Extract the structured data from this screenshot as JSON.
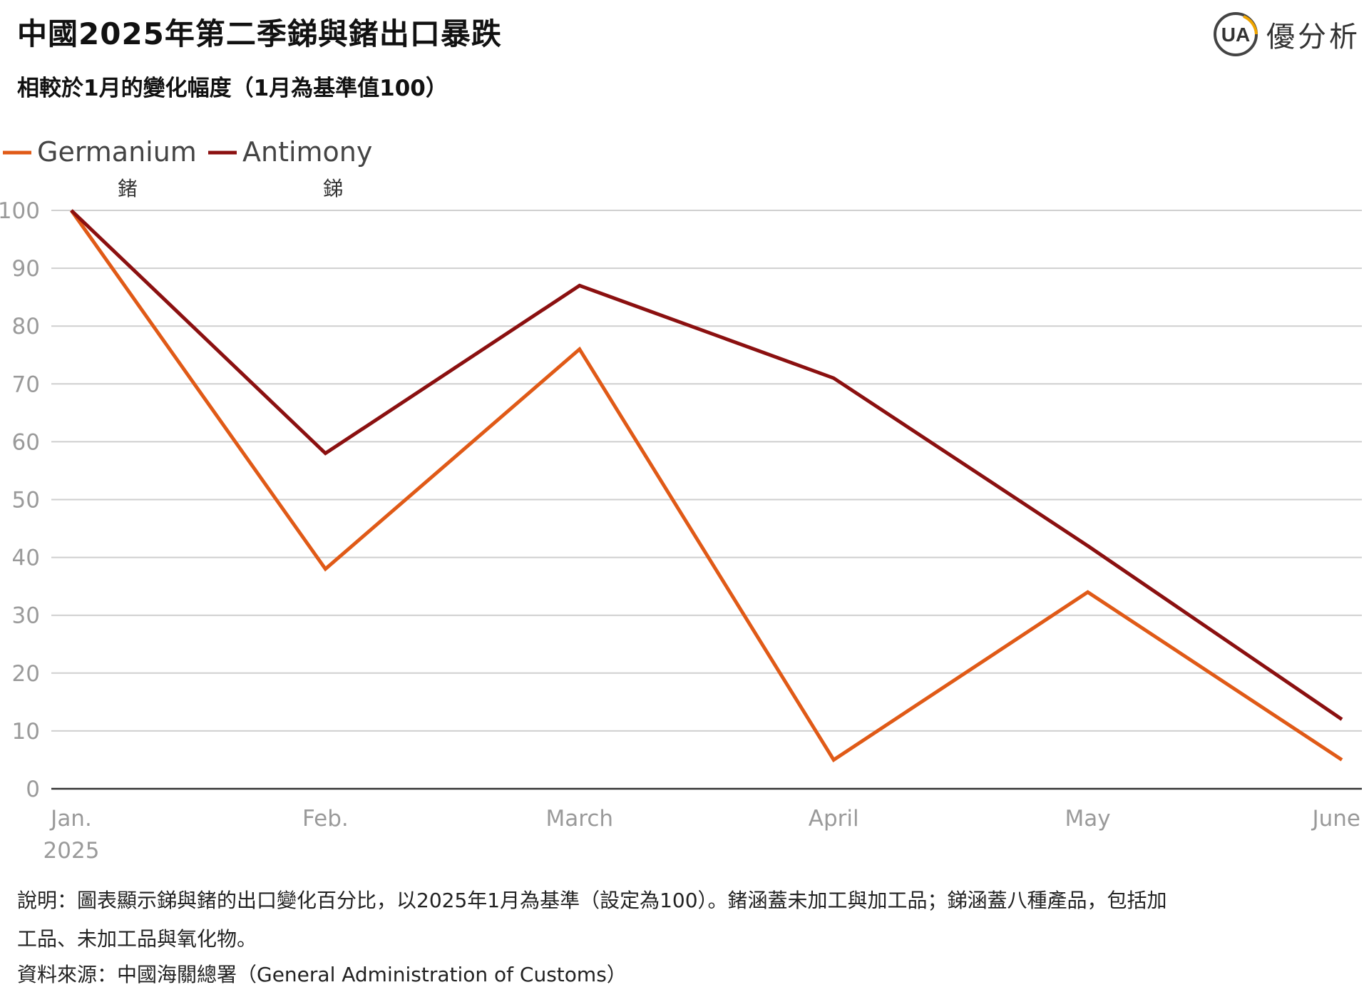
{
  "header": {
    "title": "中國2025年第二季銻與鍺出口暴跌",
    "subtitle": "相較於1月的變化幅度（1月為基準值100）"
  },
  "logo": {
    "mark_text": "UA",
    "name": "優分析",
    "ring_color": "#444444",
    "accent_color": "#f0a500"
  },
  "chart_data": {
    "type": "line",
    "categories": [
      "Jan.",
      "Feb.",
      "March",
      "April",
      "May",
      "June"
    ],
    "category_sublabels": [
      "2025",
      "",
      "",
      "",
      "",
      ""
    ],
    "series": [
      {
        "name": "Germanium",
        "name_cn": "鍺",
        "color": "#e05a17",
        "values": [
          100,
          38,
          76,
          5,
          34,
          5
        ]
      },
      {
        "name": "Antimony",
        "name_cn": "銻",
        "color": "#8b1010",
        "values": [
          100,
          58,
          87,
          71,
          42,
          12
        ]
      }
    ],
    "ylim": [
      0,
      100
    ],
    "yticks": [
      0,
      10,
      20,
      30,
      40,
      50,
      60,
      70,
      80,
      90,
      100
    ],
    "grid": true,
    "legend": "top-left"
  },
  "footer": {
    "note_line1": "說明：圖表顯示銻與鍺的出口變化百分比，以2025年1月為基準（設定為100）。鍺涵蓋未加工與加工品；銻涵蓋八種產品，包括加",
    "note_line2": "工品、未加工品與氧化物。",
    "source": "資料來源：中國海關總署（General Administration of Customs）"
  }
}
